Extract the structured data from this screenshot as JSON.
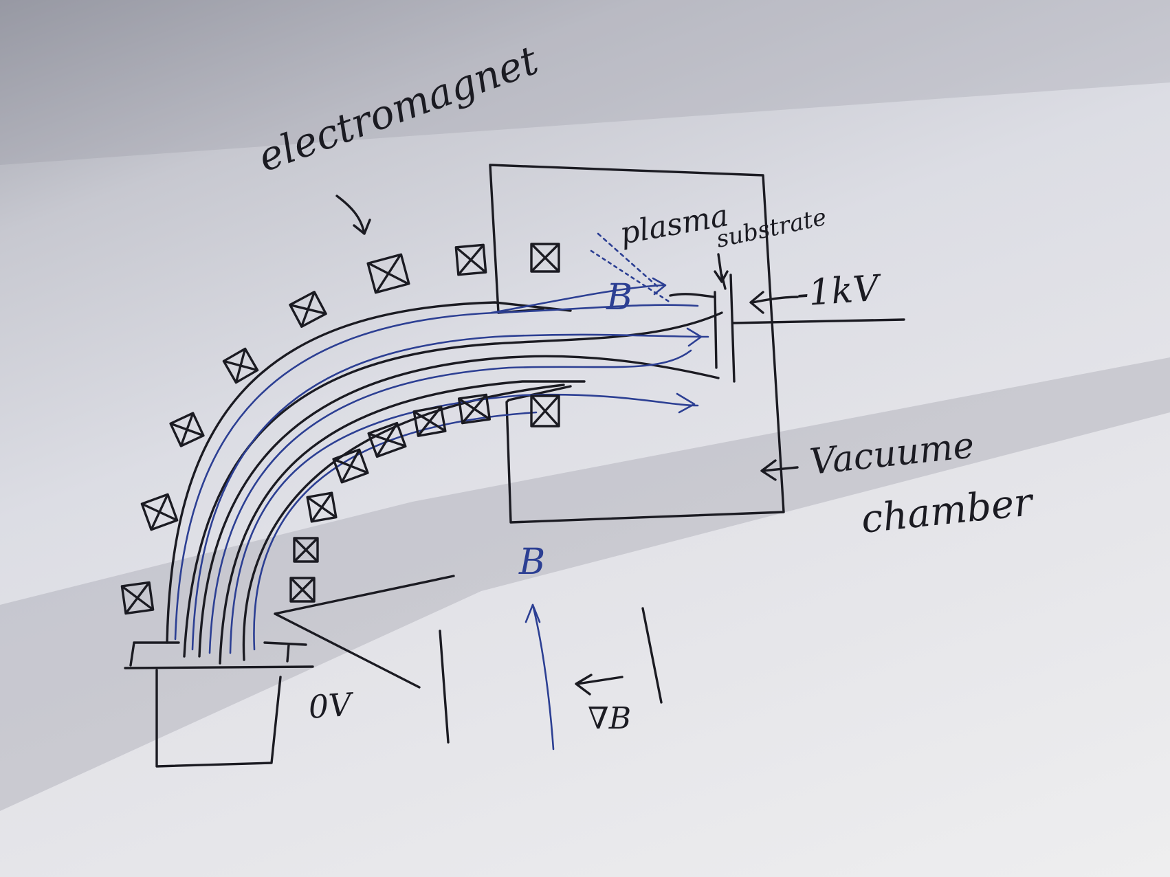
{
  "labels": {
    "electromagnet": "electromagnet",
    "plasma": "plasma",
    "substrate": "substrate",
    "voltage_substrate": "-1kV",
    "voltage_source": "0V",
    "vacuum_line1": "Vacuume",
    "vacuum_line2": "chamber",
    "field_b_top": "B",
    "field_b_lower": "B",
    "gradient_b": "∇B"
  },
  "colors": {
    "pencil": "#1b1b22",
    "blue_ink": "#2c3f93",
    "paper": "#e3e3e8"
  },
  "icons": {
    "coil_marker": "cross-in-square-icon"
  }
}
